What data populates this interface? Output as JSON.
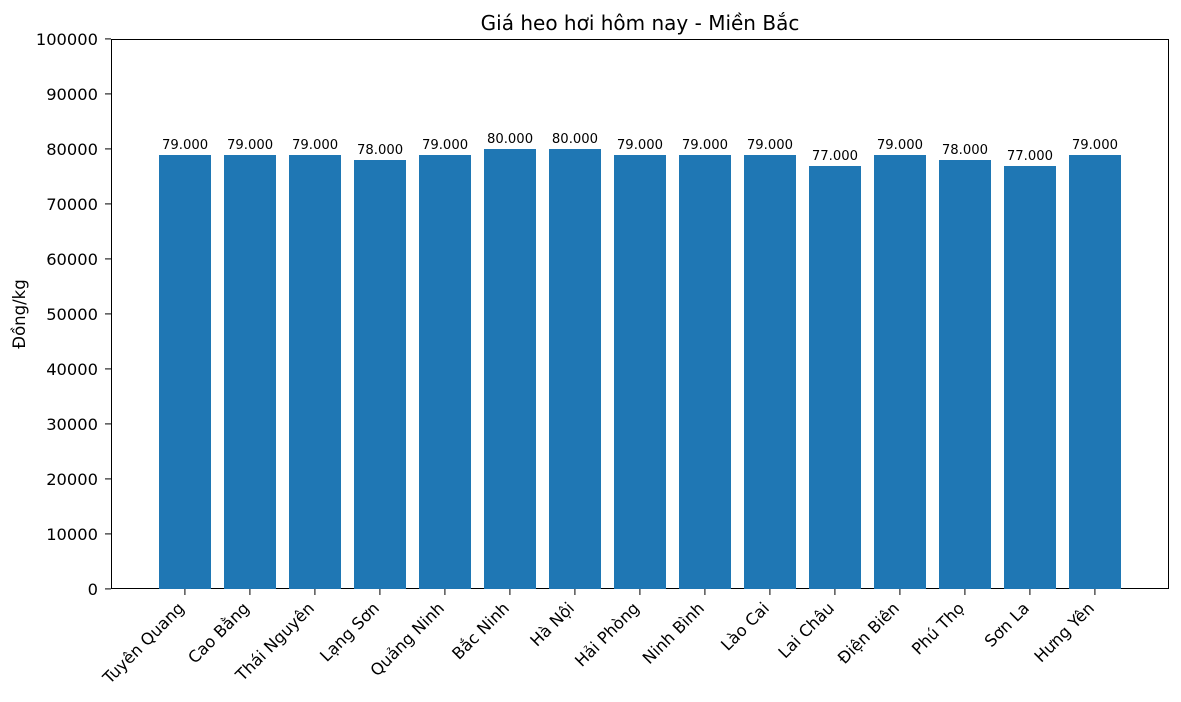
{
  "figure": {
    "background": "#ffffff",
    "text_color": "#000000",
    "axis_color": "#000000"
  },
  "chart_data": {
    "type": "bar",
    "title": "Giá heo hơi hôm nay - Miền Bắc",
    "xlabel": "",
    "ylabel": "Đồng/kg",
    "categories": [
      "Tuyên Quang",
      "Cao Bằng",
      "Thái Nguyên",
      "Lạng Sơn",
      "Quảng Ninh",
      "Bắc Ninh",
      "Hà Nội",
      "Hải Phòng",
      "Ninh Bình",
      "Lào Cai",
      "Lai Châu",
      "Điện Biên",
      "Phú Thọ",
      "Sơn La",
      "Hưng Yên"
    ],
    "values": [
      79000,
      79000,
      79000,
      78000,
      79000,
      80000,
      80000,
      79000,
      79000,
      79000,
      77000,
      79000,
      78000,
      77000,
      79000
    ],
    "bar_labels": [
      "79.000",
      "79.000",
      "79.000",
      "78.000",
      "79.000",
      "80.000",
      "80.000",
      "79.000",
      "79.000",
      "79.000",
      "77.000",
      "79.000",
      "78.000",
      "77.000",
      "79.000"
    ],
    "ylim": [
      0,
      100000
    ],
    "ytick_labels": [
      "0",
      "10000",
      "20000",
      "30000",
      "40000",
      "50000",
      "60000",
      "70000",
      "80000",
      "90000",
      "100000"
    ],
    "bar_color": "#1f77b4",
    "bar_width_fraction": 0.8,
    "x_margin_fraction": 0.05,
    "x_rotation_deg": 45,
    "grid": false,
    "legend_position": "none"
  }
}
